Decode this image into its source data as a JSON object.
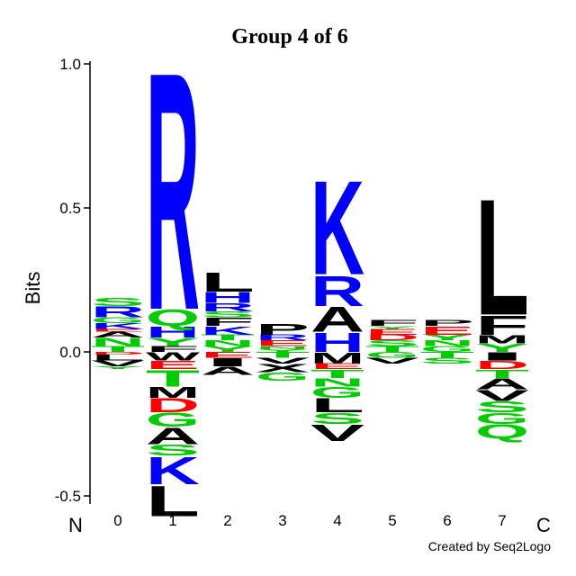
{
  "chart_data": {
    "type": "logo",
    "title": "Group 4 of 6",
    "y_label": "Bits",
    "n_label": "N",
    "c_label": "C",
    "credit": "Created by Seq2Logo",
    "categories": [
      "0",
      "1",
      "2",
      "3",
      "4",
      "5",
      "6",
      "7"
    ],
    "ylim": [
      -0.5,
      1.0
    ],
    "yticks": [
      {
        "value": -0.5,
        "label": "-0.5"
      },
      {
        "value": 0,
        "label": "0.0"
      },
      {
        "value": 0.5,
        "label": "0.5"
      },
      {
        "value": 1.0,
        "label": "1.0"
      }
    ],
    "colors": {
      "R": "#0000ff",
      "K": "#0000ff",
      "H": "#0000ff",
      "D": "#ff0000",
      "E": "#ff0000",
      "S": "#00cc00",
      "T": "#00cc00",
      "G": "#00cc00",
      "Y": "#00cc00",
      "C": "#00cc00",
      "Q": "#00cc00",
      "N": "#00cc00",
      "A": "#000000",
      "V": "#000000",
      "L": "#000000",
      "I": "#000000",
      "P": "#000000",
      "W": "#000000",
      "F": "#000000",
      "M": "#000000",
      "X": "#000000"
    },
    "stacks": [
      {
        "pos": [
          {
            "letter": "T",
            "value": 0.02
          },
          {
            "letter": "N",
            "value": 0.03
          },
          {
            "letter": "A",
            "value": 0.02
          },
          {
            "letter": "E",
            "value": 0.01
          },
          {
            "letter": "K",
            "value": 0.02
          },
          {
            "letter": "G",
            "value": 0.02
          },
          {
            "letter": "R",
            "value": 0.04
          },
          {
            "letter": "S",
            "value": 0.03
          }
        ],
        "neg": [
          {
            "letter": "D",
            "value": -0.01
          },
          {
            "letter": "L",
            "value": -0.02
          },
          {
            "letter": "V",
            "value": -0.02
          },
          {
            "letter": "Y",
            "value": -0.01
          }
        ]
      },
      {
        "pos": [
          {
            "letter": "F",
            "value": 0.02
          },
          {
            "letter": "Y",
            "value": 0.03
          },
          {
            "letter": "H",
            "value": 0.04
          },
          {
            "letter": "Q",
            "value": 0.06
          },
          {
            "letter": "R",
            "value": 0.86
          }
        ],
        "neg": [
          {
            "letter": "W",
            "value": -0.03
          },
          {
            "letter": "E",
            "value": -0.03
          },
          {
            "letter": "T",
            "value": -0.06
          },
          {
            "letter": "M",
            "value": -0.04
          },
          {
            "letter": "D",
            "value": -0.05
          },
          {
            "letter": "G",
            "value": -0.05
          },
          {
            "letter": "A",
            "value": -0.06
          },
          {
            "letter": "S",
            "value": -0.04
          },
          {
            "letter": "K",
            "value": -0.1
          },
          {
            "letter": "L",
            "value": -0.11
          }
        ]
      },
      {
        "pos": [
          {
            "letter": "Y",
            "value": 0.02
          },
          {
            "letter": "N",
            "value": 0.02
          },
          {
            "letter": "T",
            "value": 0.02
          },
          {
            "letter": "K",
            "value": 0.03
          },
          {
            "letter": "F",
            "value": 0.03
          },
          {
            "letter": "S",
            "value": 0.02
          },
          {
            "letter": "R",
            "value": 0.03
          },
          {
            "letter": "H",
            "value": 0.04
          },
          {
            "letter": "L",
            "value": 0.07
          }
        ],
        "neg": [
          {
            "letter": "E",
            "value": -0.02
          },
          {
            "letter": "I",
            "value": -0.03
          },
          {
            "letter": "A",
            "value": -0.03
          }
        ]
      },
      {
        "pos": [
          {
            "letter": "Y",
            "value": 0.01
          },
          {
            "letter": "N",
            "value": 0.01
          },
          {
            "letter": "E",
            "value": 0.02
          },
          {
            "letter": "R",
            "value": 0.02
          },
          {
            "letter": "P",
            "value": 0.04
          }
        ],
        "neg": [
          {
            "letter": "T",
            "value": -0.02
          },
          {
            "letter": "V",
            "value": -0.02
          },
          {
            "letter": "X",
            "value": -0.03
          },
          {
            "letter": "G",
            "value": -0.03
          }
        ]
      },
      {
        "pos": [
          {
            "letter": "H",
            "value": 0.07
          },
          {
            "letter": "A",
            "value": 0.09
          },
          {
            "letter": "R",
            "value": 0.11
          },
          {
            "letter": "K",
            "value": 0.34
          }
        ],
        "neg": [
          {
            "letter": "M",
            "value": -0.04
          },
          {
            "letter": "E",
            "value": -0.02
          },
          {
            "letter": "T",
            "value": -0.03
          },
          {
            "letter": "N",
            "value": -0.03
          },
          {
            "letter": "G",
            "value": -0.04
          },
          {
            "letter": "L",
            "value": -0.05
          },
          {
            "letter": "S",
            "value": -0.04
          },
          {
            "letter": "V",
            "value": -0.06
          }
        ]
      },
      {
        "pos": [
          {
            "letter": "T",
            "value": 0.02
          },
          {
            "letter": "S",
            "value": 0.02
          },
          {
            "letter": "D",
            "value": 0.02
          },
          {
            "letter": "E",
            "value": 0.02
          },
          {
            "letter": "Y",
            "value": 0.01
          },
          {
            "letter": "F",
            "value": 0.02
          }
        ],
        "neg": [
          {
            "letter": "G",
            "value": -0.02
          },
          {
            "letter": "V",
            "value": -0.02
          }
        ]
      },
      {
        "pos": [
          {
            "letter": "G",
            "value": 0.02
          },
          {
            "letter": "N",
            "value": 0.02
          },
          {
            "letter": "Y",
            "value": 0.02
          },
          {
            "letter": "E",
            "value": 0.03
          },
          {
            "letter": "P",
            "value": 0.02
          }
        ],
        "neg": [
          {
            "letter": "T",
            "value": -0.02
          },
          {
            "letter": "S",
            "value": -0.02
          }
        ]
      },
      {
        "pos": [
          {
            "letter": "Y",
            "value": 0.03
          },
          {
            "letter": "M",
            "value": 0.03
          },
          {
            "letter": "F",
            "value": 0.07
          },
          {
            "letter": "L",
            "value": 0.42
          }
        ],
        "neg": [
          {
            "letter": "I",
            "value": -0.03
          },
          {
            "letter": "D",
            "value": -0.03
          },
          {
            "letter": "T",
            "value": -0.03
          },
          {
            "letter": "A",
            "value": -0.04
          },
          {
            "letter": "V",
            "value": -0.04
          },
          {
            "letter": "S",
            "value": -0.04
          },
          {
            "letter": "G",
            "value": -0.04
          },
          {
            "letter": "Q",
            "value": -0.05
          }
        ]
      }
    ]
  }
}
